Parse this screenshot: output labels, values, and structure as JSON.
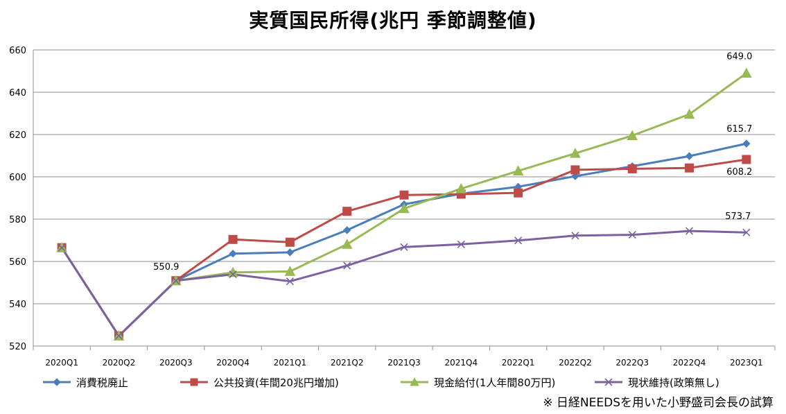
{
  "chart_data": {
    "type": "line",
    "title": "実質国民所得(兆円 季節調整値)",
    "xlabel": "",
    "ylabel": "",
    "categories": [
      "2020Q1",
      "2020Q2",
      "2020Q3",
      "2020Q4",
      "2021Q1",
      "2021Q2",
      "2021Q3",
      "2021Q4",
      "2022Q1",
      "2022Q2",
      "2022Q3",
      "2022Q4",
      "2023Q1"
    ],
    "ylim": [
      520,
      660
    ],
    "yticks": [
      520,
      540,
      560,
      580,
      600,
      620,
      640,
      660
    ],
    "grid": true,
    "legend_position": "bottom",
    "series": [
      {
        "name": "消費税廃止",
        "color": "#4A7EBB",
        "marker": "diamond",
        "values": [
          566.5,
          524.8,
          550.9,
          563.7,
          564.3,
          574.8,
          587.0,
          592.0,
          595.3,
          600.3,
          605.0,
          609.8,
          615.7
        ]
      },
      {
        "name": "公共投資(年間20兆円増加)",
        "color": "#BE4B48",
        "marker": "square",
        "values": [
          566.5,
          524.8,
          550.9,
          570.4,
          569.1,
          583.7,
          591.4,
          591.8,
          592.4,
          603.3,
          603.8,
          604.2,
          608.2
        ]
      },
      {
        "name": "現金給付(1人年間80万円)",
        "color": "#98B954",
        "marker": "triangle",
        "values": [
          566.5,
          524.8,
          550.9,
          554.8,
          555.3,
          568.1,
          585.0,
          594.4,
          602.8,
          611.1,
          619.5,
          629.6,
          649.0
        ]
      },
      {
        "name": "現状維持(政策無し)",
        "color": "#7D60A0",
        "marker": "x",
        "values": [
          566.5,
          524.8,
          550.9,
          553.9,
          550.6,
          558.0,
          566.8,
          568.1,
          569.9,
          572.2,
          572.6,
          574.4,
          573.7
        ]
      }
    ],
    "annotations": [
      {
        "text": "550.9",
        "series": 0,
        "index": 2
      },
      {
        "text": "649.0",
        "series": 2,
        "index": 12
      },
      {
        "text": "615.7",
        "series": 0,
        "index": 12
      },
      {
        "text": "608.2",
        "series": 1,
        "index": 12
      },
      {
        "text": "573.7",
        "series": 3,
        "index": 12
      }
    ]
  },
  "note": "※ 日経NEEDSを用いた小野盛司会長の試算"
}
